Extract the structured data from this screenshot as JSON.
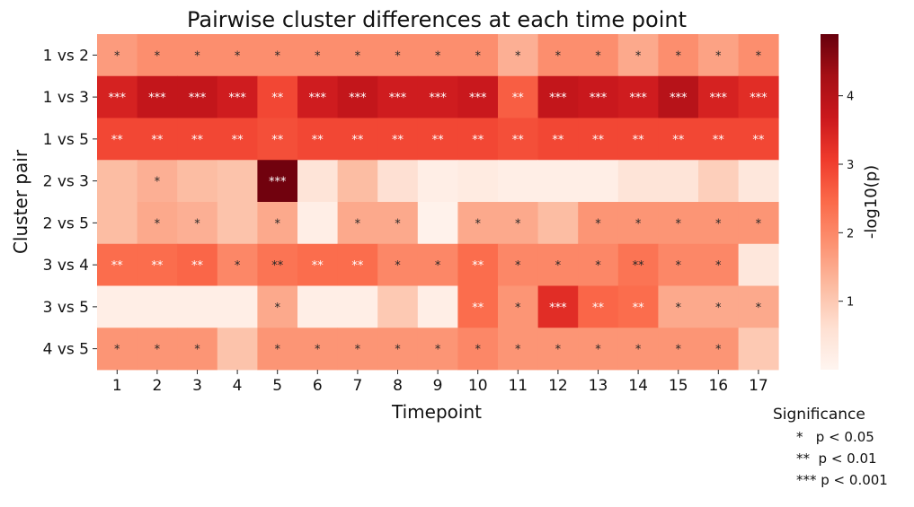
{
  "chart_data": {
    "type": "heatmap",
    "title": "Pairwise cluster differences at each time point",
    "xlabel": "Timepoint",
    "ylabel": "Cluster pair",
    "x": [
      "1",
      "2",
      "3",
      "4",
      "5",
      "6",
      "7",
      "8",
      "9",
      "10",
      "11",
      "12",
      "13",
      "14",
      "15",
      "16",
      "17"
    ],
    "y": [
      "1 vs 2",
      "1 vs 3",
      "1 vs 5",
      "2 vs 3",
      "2 vs 5",
      "3 vs 4",
      "3 vs 5",
      "4 vs 5"
    ],
    "values": [
      [
        1.7,
        1.9,
        1.9,
        1.9,
        1.9,
        1.9,
        1.9,
        1.9,
        1.9,
        1.9,
        1.4,
        1.9,
        1.9,
        1.5,
        1.9,
        1.6,
        1.9
      ],
      [
        3.5,
        3.8,
        3.8,
        3.6,
        2.9,
        3.6,
        3.8,
        3.6,
        3.6,
        3.7,
        2.6,
        3.8,
        3.7,
        3.6,
        4.0,
        3.5,
        3.3
      ],
      [
        2.9,
        2.9,
        2.9,
        2.9,
        2.8,
        2.9,
        2.9,
        2.9,
        2.9,
        2.9,
        2.8,
        2.9,
        2.9,
        2.9,
        2.9,
        2.9,
        2.9
      ],
      [
        1.2,
        1.4,
        1.2,
        1.1,
        4.8,
        0.5,
        1.2,
        0.6,
        0.2,
        0.3,
        0.2,
        0.2,
        0.2,
        0.5,
        0.5,
        0.9,
        0.4
      ],
      [
        1.2,
        1.5,
        1.4,
        1.1,
        1.5,
        0.2,
        1.5,
        1.5,
        0.1,
        1.5,
        1.5,
        1.2,
        1.8,
        1.8,
        1.8,
        1.8,
        1.8
      ],
      [
        2.4,
        2.4,
        2.5,
        2.0,
        2.3,
        2.4,
        2.4,
        2.0,
        2.0,
        2.4,
        2.0,
        2.0,
        2.0,
        2.3,
        2.0,
        2.0,
        0.4
      ],
      [
        0.2,
        0.2,
        0.2,
        0.2,
        1.5,
        0.2,
        0.2,
        1.0,
        0.2,
        2.4,
        1.8,
        3.3,
        2.5,
        2.4,
        1.5,
        1.5,
        1.5
      ],
      [
        1.8,
        1.8,
        1.8,
        1.1,
        1.8,
        1.8,
        1.8,
        1.8,
        1.8,
        2.0,
        1.8,
        1.8,
        1.8,
        1.8,
        1.8,
        1.8,
        1.0
      ]
    ],
    "annotations": [
      [
        "*",
        "*",
        "*",
        "*",
        "*",
        "*",
        "*",
        "*",
        "*",
        "*",
        "*",
        "*",
        "*",
        "*",
        "*",
        "*",
        "*"
      ],
      [
        "***",
        "***",
        "***",
        "***",
        "**",
        "***",
        "***",
        "***",
        "***",
        "***",
        "**",
        "***",
        "***",
        "***",
        "***",
        "***",
        "***"
      ],
      [
        "**",
        "**",
        "**",
        "**",
        "**",
        "**",
        "**",
        "**",
        "**",
        "**",
        "**",
        "**",
        "**",
        "**",
        "**",
        "**",
        "**"
      ],
      [
        "",
        "*",
        "",
        "",
        "***",
        "",
        "",
        "",
        "",
        "",
        "",
        "",
        "",
        "",
        "",
        "",
        ""
      ],
      [
        "",
        "*",
        "*",
        "",
        "*",
        "",
        "*",
        "*",
        "",
        "*",
        "*",
        "",
        "*",
        "*",
        "*",
        "*",
        "*"
      ],
      [
        "**",
        "**",
        "**",
        "*",
        "**",
        "**",
        "**",
        "*",
        "*",
        "**",
        "*",
        "*",
        "*",
        "**",
        "*",
        "*",
        ""
      ],
      [
        "",
        "",
        "",
        "",
        "*",
        "",
        "",
        "",
        "",
        "**",
        "*",
        "***",
        "**",
        "**",
        "*",
        "*",
        "*"
      ],
      [
        "*",
        "*",
        "*",
        "",
        "*",
        "*",
        "*",
        "*",
        "*",
        "*",
        "*",
        "*",
        "*",
        "*",
        "*",
        "*",
        ""
      ]
    ],
    "colorbar": {
      "label": "-log10(p)",
      "range": [
        0,
        4.9
      ],
      "ticks": [
        "1",
        "2",
        "3",
        "4"
      ],
      "tick_values": [
        1,
        2,
        3,
        4
      ],
      "colormap": "Reds"
    }
  },
  "legend": {
    "title": "Significance",
    "rows": [
      "*   p < 0.05",
      "**  p < 0.01",
      "*** p < 0.001"
    ]
  }
}
